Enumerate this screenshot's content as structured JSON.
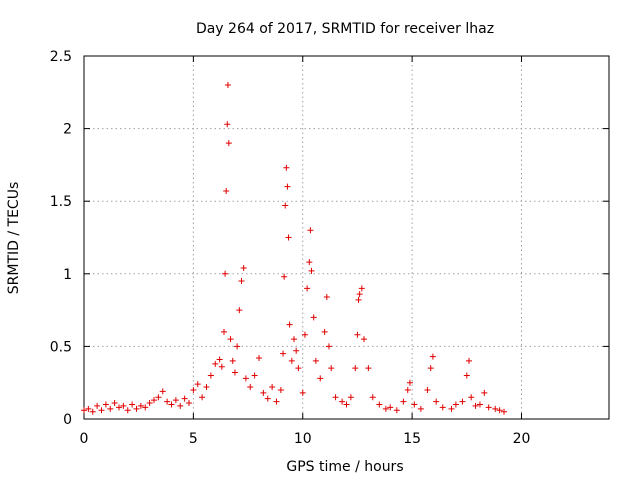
{
  "chart_data": {
    "type": "scatter",
    "title": "Day 264 of 2017, SRMTID for receiver lhaz",
    "xlabel": "GPS time / hours",
    "ylabel": "SRMTID / TECUs",
    "xlim": [
      0,
      24
    ],
    "ylim": [
      0,
      2.5
    ],
    "xticks": [
      0,
      5,
      10,
      15,
      20
    ],
    "yticks": [
      0,
      0.5,
      1,
      1.5,
      2,
      2.5
    ],
    "xtick_labels": [
      "0",
      "5",
      "10",
      "15",
      "20"
    ],
    "ytick_labels": [
      "0",
      "0.5",
      "1",
      "1.5",
      "2",
      "2.5"
    ],
    "grid": true,
    "marker": "+",
    "series": [
      {
        "name": "SRMTID",
        "color": "#e00000",
        "points": [
          [
            0.0,
            0.06
          ],
          [
            0.2,
            0.07
          ],
          [
            0.4,
            0.05
          ],
          [
            0.6,
            0.09
          ],
          [
            0.8,
            0.06
          ],
          [
            1.0,
            0.1
          ],
          [
            1.2,
            0.07
          ],
          [
            1.4,
            0.11
          ],
          [
            1.6,
            0.08
          ],
          [
            1.8,
            0.09
          ],
          [
            2.0,
            0.06
          ],
          [
            2.2,
            0.1
          ],
          [
            2.4,
            0.07
          ],
          [
            2.6,
            0.09
          ],
          [
            2.8,
            0.08
          ],
          [
            3.0,
            0.11
          ],
          [
            3.2,
            0.13
          ],
          [
            3.4,
            0.15
          ],
          [
            3.6,
            0.19
          ],
          [
            3.8,
            0.12
          ],
          [
            4.0,
            0.1
          ],
          [
            4.2,
            0.13
          ],
          [
            4.4,
            0.09
          ],
          [
            4.6,
            0.14
          ],
          [
            4.8,
            0.11
          ],
          [
            5.0,
            0.2
          ],
          [
            5.2,
            0.24
          ],
          [
            5.4,
            0.15
          ],
          [
            5.6,
            0.22
          ],
          [
            5.8,
            0.3
          ],
          [
            6.0,
            0.38
          ],
          [
            6.2,
            0.41
          ],
          [
            6.3,
            0.36
          ],
          [
            6.4,
            0.6
          ],
          [
            6.45,
            1.0
          ],
          [
            6.5,
            1.57
          ],
          [
            6.55,
            2.03
          ],
          [
            6.58,
            2.3
          ],
          [
            6.62,
            1.9
          ],
          [
            6.7,
            0.55
          ],
          [
            6.8,
            0.4
          ],
          [
            6.9,
            0.32
          ],
          [
            7.0,
            0.5
          ],
          [
            7.1,
            0.75
          ],
          [
            7.2,
            0.95
          ],
          [
            7.3,
            1.04
          ],
          [
            7.4,
            0.28
          ],
          [
            7.6,
            0.22
          ],
          [
            7.8,
            0.3
          ],
          [
            8.0,
            0.42
          ],
          [
            8.2,
            0.18
          ],
          [
            8.4,
            0.14
          ],
          [
            8.6,
            0.22
          ],
          [
            8.8,
            0.12
          ],
          [
            9.0,
            0.2
          ],
          [
            9.1,
            0.45
          ],
          [
            9.15,
            0.98
          ],
          [
            9.2,
            1.47
          ],
          [
            9.25,
            1.73
          ],
          [
            9.3,
            1.6
          ],
          [
            9.35,
            1.25
          ],
          [
            9.4,
            0.65
          ],
          [
            9.5,
            0.4
          ],
          [
            9.6,
            0.55
          ],
          [
            9.7,
            0.47
          ],
          [
            9.8,
            0.35
          ],
          [
            10.0,
            0.18
          ],
          [
            10.1,
            0.58
          ],
          [
            10.2,
            0.9
          ],
          [
            10.3,
            1.08
          ],
          [
            10.35,
            1.3
          ],
          [
            10.4,
            1.02
          ],
          [
            10.5,
            0.7
          ],
          [
            10.6,
            0.4
          ],
          [
            10.8,
            0.28
          ],
          [
            11.0,
            0.6
          ],
          [
            11.1,
            0.84
          ],
          [
            11.2,
            0.5
          ],
          [
            11.3,
            0.35
          ],
          [
            11.5,
            0.15
          ],
          [
            11.8,
            0.12
          ],
          [
            12.0,
            0.1
          ],
          [
            12.2,
            0.15
          ],
          [
            12.4,
            0.35
          ],
          [
            12.5,
            0.58
          ],
          [
            12.55,
            0.82
          ],
          [
            12.6,
            0.86
          ],
          [
            12.7,
            0.9
          ],
          [
            12.8,
            0.55
          ],
          [
            13.0,
            0.35
          ],
          [
            13.2,
            0.15
          ],
          [
            13.5,
            0.1
          ],
          [
            13.8,
            0.07
          ],
          [
            14.0,
            0.08
          ],
          [
            14.3,
            0.06
          ],
          [
            14.6,
            0.12
          ],
          [
            14.8,
            0.2
          ],
          [
            14.9,
            0.25
          ],
          [
            15.1,
            0.1
          ],
          [
            15.4,
            0.07
          ],
          [
            15.7,
            0.2
          ],
          [
            15.85,
            0.35
          ],
          [
            15.95,
            0.43
          ],
          [
            16.1,
            0.12
          ],
          [
            16.4,
            0.08
          ],
          [
            16.8,
            0.07
          ],
          [
            17.0,
            0.1
          ],
          [
            17.3,
            0.12
          ],
          [
            17.5,
            0.3
          ],
          [
            17.6,
            0.4
          ],
          [
            17.7,
            0.15
          ],
          [
            17.9,
            0.09
          ],
          [
            18.1,
            0.1
          ],
          [
            18.3,
            0.18
          ],
          [
            18.5,
            0.08
          ],
          [
            18.8,
            0.07
          ],
          [
            19.0,
            0.06
          ],
          [
            19.2,
            0.05
          ]
        ]
      }
    ]
  }
}
